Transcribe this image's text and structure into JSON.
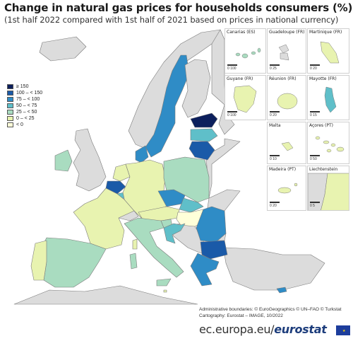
{
  "title": "Change in natural gas prices for households consumers (%)",
  "subtitle": "(1st half 2022 compared with 1st half of 2021 based on prices in national currency)",
  "legend": [
    {
      "label": "≥ 150",
      "color": "#0c1f5c"
    },
    {
      "label": "100 – < 150",
      "color": "#1a5aa8"
    },
    {
      "label": "75 – < 100",
      "color": "#2f8cc6"
    },
    {
      "label": "50 – < 75",
      "color": "#5fbfc9"
    },
    {
      "label": "25 – < 50",
      "color": "#a9dcc0"
    },
    {
      "label": "0 – < 25",
      "color": "#e8f3b0"
    },
    {
      "label": "< 0",
      "color": "#ffffd9"
    }
  ],
  "colors": {
    "sea": "#ffffff",
    "non_eu": "#dcdcdc",
    "border": "#7a7a7a"
  },
  "insets": [
    {
      "label": "Canarias (ES)",
      "scale_left": "0",
      "scale_right": "100"
    },
    {
      "label": "Guadeloupe (FR)",
      "scale_left": "0",
      "scale_right": "25"
    },
    {
      "label": "Martinique (FR)",
      "scale_left": "0",
      "scale_right": "20"
    },
    {
      "label": "Guyane (FR)",
      "scale_left": "0",
      "scale_right": "100"
    },
    {
      "label": "Réunion (FR)",
      "scale_left": "0",
      "scale_right": "20"
    },
    {
      "label": "Mayotte (FR)",
      "scale_left": "0",
      "scale_right": "15"
    },
    {
      "label": "Malta",
      "scale_left": "0",
      "scale_right": "10"
    },
    {
      "label": "Açores (PT)",
      "scale_left": "0",
      "scale_right": "50"
    },
    {
      "label": "Madeira (PT)",
      "scale_left": "0",
      "scale_right": "20"
    },
    {
      "label": "Liechtenstein",
      "scale_left": "0",
      "scale_right": "5"
    }
  ],
  "credits": {
    "line1": "Administrative boundaries: © EuroGeographics © UN–FAO © Turkstat",
    "line2": "Cartography: Eurostat – IMAGE, 10/2022"
  },
  "footer": {
    "url": "ec.europa.eu/",
    "brand": "eurostat",
    "flag_stars": "★"
  }
}
